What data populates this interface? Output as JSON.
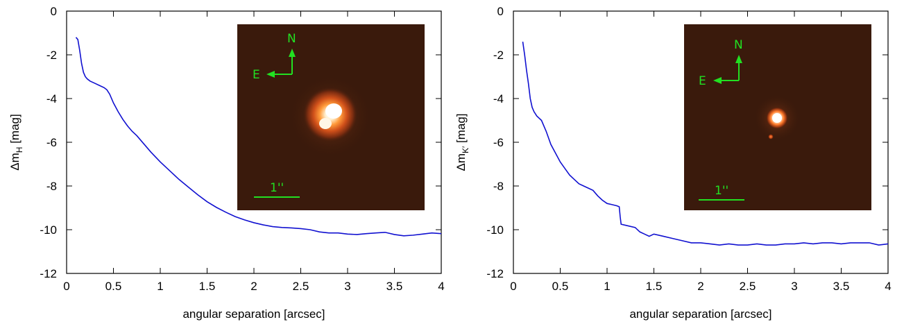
{
  "chart_data": [
    {
      "type": "line",
      "xlabel": "angular separation [arcsec]",
      "ylabel_main": "Δm",
      "ylabel_sub": "H",
      "ylabel_unit": " [mag]",
      "xlim": [
        0,
        4
      ],
      "ylim": [
        -12,
        0
      ],
      "xticks": [
        0,
        0.5,
        1,
        1.5,
        2,
        2.5,
        3,
        3.5,
        4
      ],
      "yticks": [
        0,
        -2,
        -4,
        -6,
        -8,
        -10,
        -12
      ],
      "series": [
        {
          "color": "#1010d0",
          "x": [
            0.1,
            0.12,
            0.14,
            0.16,
            0.18,
            0.2,
            0.22,
            0.25,
            0.3,
            0.35,
            0.4,
            0.43,
            0.46,
            0.5,
            0.55,
            0.6,
            0.65,
            0.7,
            0.75,
            0.8,
            0.9,
            1.0,
            1.1,
            1.2,
            1.3,
            1.4,
            1.5,
            1.6,
            1.7,
            1.8,
            1.9,
            2.0,
            2.1,
            2.2,
            2.3,
            2.4,
            2.5,
            2.6,
            2.7,
            2.8,
            2.9,
            3.0,
            3.1,
            3.2,
            3.3,
            3.4,
            3.5,
            3.6,
            3.7,
            3.8,
            3.9,
            4.0
          ],
          "y": [
            -1.2,
            -1.3,
            -1.8,
            -2.4,
            -2.8,
            -3.0,
            -3.1,
            -3.2,
            -3.3,
            -3.4,
            -3.5,
            -3.6,
            -3.8,
            -4.2,
            -4.6,
            -4.95,
            -5.25,
            -5.5,
            -5.7,
            -5.95,
            -6.45,
            -6.9,
            -7.3,
            -7.7,
            -8.05,
            -8.4,
            -8.72,
            -8.98,
            -9.2,
            -9.4,
            -9.55,
            -9.68,
            -9.78,
            -9.86,
            -9.9,
            -9.92,
            -9.95,
            -10.0,
            -10.1,
            -10.15,
            -10.15,
            -10.2,
            -10.22,
            -10.18,
            -10.15,
            -10.12,
            -10.22,
            -10.28,
            -10.25,
            -10.2,
            -10.15,
            -10.18
          ]
        }
      ],
      "inset": {
        "compass_north": "N",
        "compass_east": "E",
        "scale_label": "1''",
        "background": "#3a1a0c",
        "text_color": "#22e022"
      }
    },
    {
      "type": "line",
      "xlabel": "angular separation [arcsec]",
      "ylabel_main": "Δm",
      "ylabel_sub": "K′",
      "ylabel_unit": " [mag]",
      "xlim": [
        0,
        4
      ],
      "ylim": [
        -12,
        0
      ],
      "xticks": [
        0,
        0.5,
        1,
        1.5,
        2,
        2.5,
        3,
        3.5,
        4
      ],
      "yticks": [
        0,
        -2,
        -4,
        -6,
        -8,
        -10,
        -12
      ],
      "series": [
        {
          "color": "#1010d0",
          "x": [
            0.1,
            0.12,
            0.14,
            0.16,
            0.18,
            0.2,
            0.22,
            0.25,
            0.3,
            0.35,
            0.4,
            0.45,
            0.5,
            0.55,
            0.6,
            0.65,
            0.7,
            0.75,
            0.8,
            0.85,
            0.9,
            0.95,
            1.0,
            1.05,
            1.1,
            1.13,
            1.14,
            1.15,
            1.2,
            1.3,
            1.35,
            1.4,
            1.45,
            1.5,
            1.6,
            1.7,
            1.8,
            1.9,
            2.0,
            2.1,
            2.2,
            2.3,
            2.4,
            2.5,
            2.6,
            2.7,
            2.8,
            2.9,
            3.0,
            3.1,
            3.2,
            3.3,
            3.4,
            3.5,
            3.6,
            3.7,
            3.8,
            3.9,
            4.0
          ],
          "y": [
            -1.4,
            -2.0,
            -2.7,
            -3.3,
            -4.0,
            -4.4,
            -4.6,
            -4.8,
            -5.0,
            -5.5,
            -6.1,
            -6.5,
            -6.9,
            -7.2,
            -7.5,
            -7.7,
            -7.9,
            -8.0,
            -8.1,
            -8.2,
            -8.45,
            -8.65,
            -8.8,
            -8.85,
            -8.9,
            -8.95,
            -9.4,
            -9.75,
            -9.8,
            -9.9,
            -10.1,
            -10.2,
            -10.3,
            -10.2,
            -10.3,
            -10.4,
            -10.5,
            -10.6,
            -10.6,
            -10.65,
            -10.7,
            -10.65,
            -10.7,
            -10.7,
            -10.65,
            -10.7,
            -10.7,
            -10.65,
            -10.65,
            -10.6,
            -10.65,
            -10.6,
            -10.6,
            -10.65,
            -10.6,
            -10.6,
            -10.6,
            -10.7,
            -10.65
          ]
        }
      ],
      "inset": {
        "compass_north": "N",
        "compass_east": "E",
        "scale_label": "1''",
        "background": "#3a1a0c",
        "text_color": "#22e022"
      }
    }
  ]
}
